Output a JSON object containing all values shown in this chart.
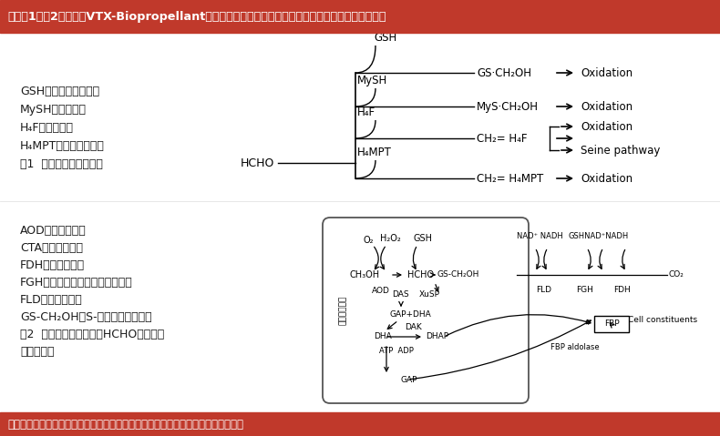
{
  "title_text": "下方图1与图2为易卫士VTX-Biopropellant天然微生物挥发剂促使甲醛代谢加速的两个生物反应图示：",
  "bottom_text": "下方曲线图为易卫士治理甲醛后，甲醛挥发加速与甲醛自然挥发的效用对比三者图：",
  "header_bg": "#C0392B",
  "footer_bg": "#C0392B",
  "main_bg": "#FFFFFF",
  "header_text_color": "#FFFFFF",
  "footer_text_color": "#FFFFFF",
  "body_text_color": "#1a1a1a",
  "left_labels_1": [
    "GSH：还原型谷胱甘肽",
    "MySH：真菌硫醇",
    "H₄F：四氢叶酸",
    "H₄MPT；四氢甲基碟呤",
    "图1  微生物甲醛氧化途径"
  ],
  "left_labels_2": [
    "AOD：甲醇氧化酶",
    "CTA：过氧化氢酶",
    "FDH：甲酸脱氢酶",
    "FGH：硫代甲酰基谷胱甘肽水解酶",
    "FLD：甲醛脱氢酶",
    "GS-CH₂OH：S-羟甲基谷胱甘肽。",
    "图2  甲基营养酵母菌同化HCHO的木酮糖",
    "单磷酸途径"
  ]
}
